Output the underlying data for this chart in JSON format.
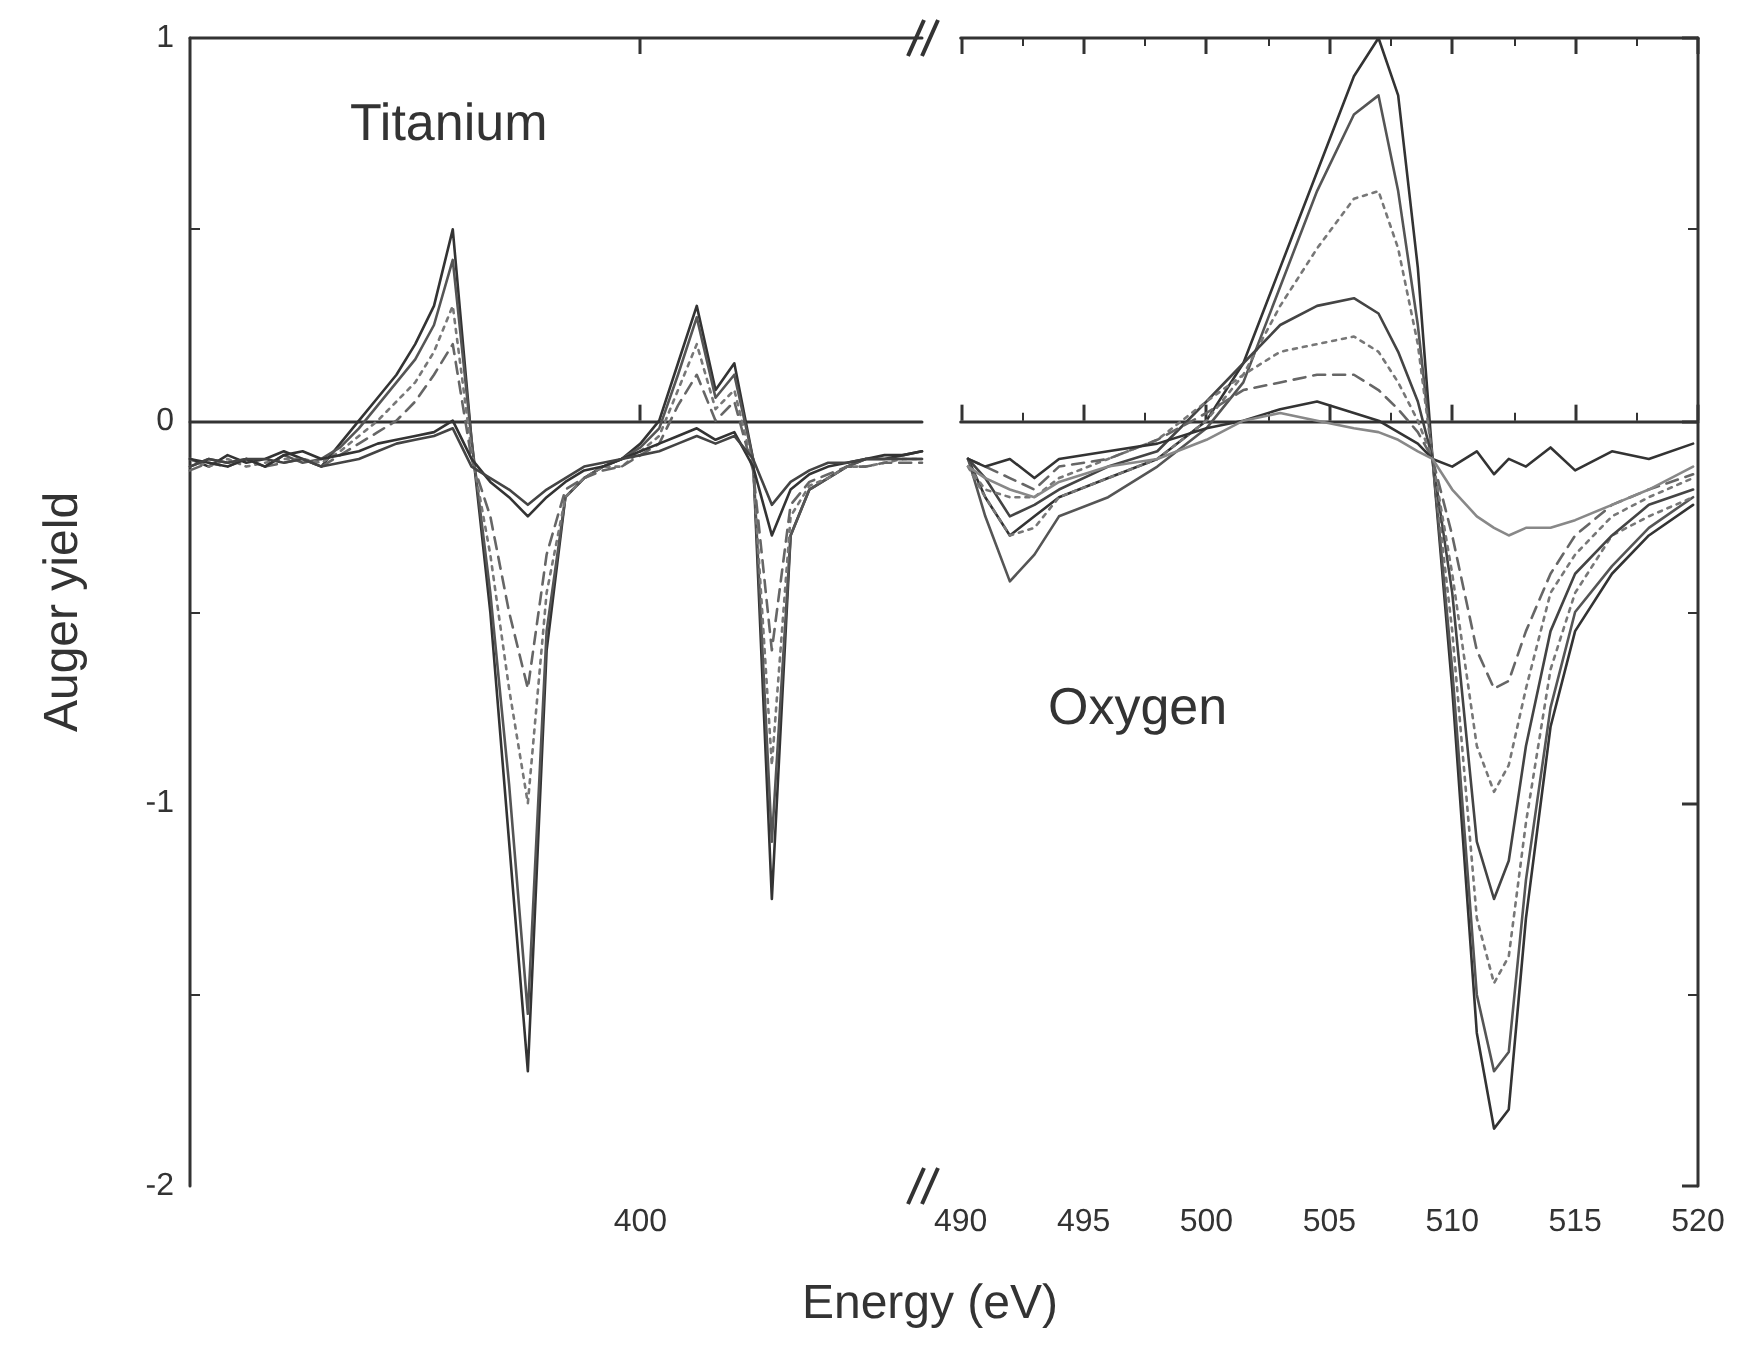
{
  "chart_data": [
    {
      "type": "line",
      "ylabel": "Auger yield",
      "xlabel": "Energy (eV)",
      "annotations": [
        "Titanium"
      ],
      "marker": "none",
      "categories": [
        null,
        null,
        null,
        null,
        null,
        null,
        null,
        null,
        null,
        null,
        null,
        null,
        null,
        null,
        null,
        null,
        null,
        null,
        null,
        null,
        null,
        null,
        null,
        null,
        "400",
        null,
        null,
        null,
        null,
        null,
        null,
        null,
        null,
        null,
        null,
        null,
        null,
        null,
        null,
        null
      ],
      "ylim": [
        -2,
        1
      ],
      "yticks": [
        -2,
        -1,
        0,
        1
      ],
      "series": [
        {
          "color": "#333333",
          "line_style": "solid",
          "values": [
            -0.1,
            -0.12,
            -0.09,
            -0.11,
            -0.1,
            -0.08,
            -0.1,
            -0.12,
            -0.06,
            0.0,
            0.06,
            0.12,
            0.2,
            0.3,
            0.5,
            -0.05,
            -0.5,
            -1.1,
            -1.7,
            -0.6,
            -0.2,
            -0.15,
            -0.12,
            -0.1,
            -0.06,
            0.0,
            0.15,
            0.3,
            0.08,
            0.15,
            -0.1,
            -1.25,
            -0.3,
            -0.18,
            -0.15,
            -0.12,
            -0.1,
            -0.1,
            -0.09,
            -0.08
          ]
        },
        {
          "color": "#555555",
          "line_style": "solid",
          "values": [
            -0.12,
            -0.1,
            -0.11,
            -0.1,
            -0.12,
            -0.09,
            -0.11,
            -0.1,
            -0.07,
            -0.02,
            0.04,
            0.1,
            0.16,
            0.25,
            0.42,
            -0.05,
            -0.45,
            -0.95,
            -1.55,
            -0.55,
            -0.2,
            -0.15,
            -0.12,
            -0.1,
            -0.07,
            -0.02,
            0.12,
            0.27,
            0.06,
            0.12,
            -0.1,
            -1.1,
            -0.3,
            -0.18,
            -0.15,
            -0.12,
            -0.1,
            -0.1,
            -0.1,
            -0.1
          ]
        },
        {
          "color": "#777777",
          "line_style": "dotted",
          "values": [
            -0.1,
            -0.12,
            -0.1,
            -0.12,
            -0.11,
            -0.1,
            -0.1,
            -0.11,
            -0.08,
            -0.04,
            0.0,
            0.05,
            0.1,
            0.18,
            0.3,
            -0.08,
            -0.35,
            -0.7,
            -1.0,
            -0.45,
            -0.2,
            -0.15,
            -0.12,
            -0.12,
            -0.08,
            -0.04,
            0.08,
            0.2,
            0.03,
            0.08,
            -0.12,
            -0.9,
            -0.25,
            -0.17,
            -0.15,
            -0.12,
            -0.12,
            -0.11,
            -0.1,
            -0.1
          ]
        },
        {
          "color": "#666666",
          "line_style": "dashed",
          "values": [
            -0.13,
            -0.11,
            -0.12,
            -0.1,
            -0.12,
            -0.11,
            -0.1,
            -0.12,
            -0.09,
            -0.06,
            -0.03,
            0.0,
            0.05,
            0.12,
            0.2,
            -0.1,
            -0.25,
            -0.5,
            -0.7,
            -0.35,
            -0.18,
            -0.15,
            -0.13,
            -0.12,
            -0.09,
            -0.06,
            0.04,
            0.12,
            0.0,
            0.05,
            -0.13,
            -0.6,
            -0.22,
            -0.16,
            -0.14,
            -0.12,
            -0.12,
            -0.11,
            -0.11,
            -0.11
          ]
        },
        {
          "color": "#333333",
          "line_style": "solid",
          "values": [
            -0.1,
            -0.11,
            -0.12,
            -0.1,
            -0.12,
            -0.09,
            -0.08,
            -0.1,
            -0.09,
            -0.08,
            -0.06,
            -0.05,
            -0.04,
            -0.03,
            0.0,
            -0.1,
            -0.16,
            -0.2,
            -0.25,
            -0.2,
            -0.16,
            -0.13,
            -0.12,
            -0.1,
            -0.08,
            -0.06,
            -0.04,
            -0.02,
            -0.05,
            -0.03,
            -0.12,
            -0.3,
            -0.18,
            -0.14,
            -0.12,
            -0.11,
            -0.1,
            -0.09,
            -0.09,
            -0.08
          ]
        },
        {
          "color": "#444444",
          "line_style": "solid",
          "values": [
            -0.12,
            -0.1,
            -0.11,
            -0.1,
            -0.1,
            -0.11,
            -0.1,
            -0.12,
            -0.11,
            -0.1,
            -0.08,
            -0.06,
            -0.05,
            -0.04,
            -0.02,
            -0.12,
            -0.15,
            -0.18,
            -0.22,
            -0.18,
            -0.15,
            -0.12,
            -0.11,
            -0.1,
            -0.09,
            -0.08,
            -0.06,
            -0.04,
            -0.06,
            -0.04,
            -0.1,
            -0.22,
            -0.16,
            -0.13,
            -0.11,
            -0.11,
            -0.1,
            -0.1,
            -0.1,
            -0.1
          ]
        }
      ]
    },
    {
      "type": "line",
      "annotations": [
        "Oxygen"
      ],
      "marker": "none",
      "tick_labels": "x",
      "xlim": [
        490,
        520
      ],
      "xticks": [
        490,
        495,
        500,
        505,
        510,
        515,
        520
      ],
      "ylim": [
        -2,
        1
      ],
      "yticks": [
        -2,
        -1,
        0,
        1
      ],
      "x": [
        490.3,
        491,
        492,
        493,
        494,
        496,
        498,
        500,
        501.5,
        503,
        504.5,
        506,
        507,
        507.8,
        508.6,
        509.2,
        510,
        511,
        511.7,
        512.3,
        513,
        514,
        515,
        516.5,
        518,
        519.8
      ],
      "series": [
        {
          "color": "#333333",
          "line_style": "solid",
          "values": [
            -0.1,
            -0.2,
            -0.3,
            -0.25,
            -0.2,
            -0.15,
            -0.1,
            0.0,
            0.15,
            0.4,
            0.65,
            0.9,
            1.0,
            0.85,
            0.4,
            -0.1,
            -0.7,
            -1.6,
            -1.85,
            -1.8,
            -1.3,
            -0.8,
            -0.55,
            -0.4,
            -0.3,
            -0.22
          ]
        },
        {
          "color": "#555555",
          "line_style": "solid",
          "values": [
            -0.1,
            -0.25,
            -0.42,
            -0.35,
            -0.25,
            -0.2,
            -0.12,
            -0.02,
            0.1,
            0.35,
            0.6,
            0.8,
            0.85,
            0.6,
            0.25,
            -0.1,
            -0.65,
            -1.5,
            -1.7,
            -1.65,
            -1.2,
            -0.75,
            -0.5,
            -0.38,
            -0.28,
            -0.2
          ]
        },
        {
          "color": "#777777",
          "line_style": "dotted",
          "values": [
            -0.12,
            -0.2,
            -0.3,
            -0.28,
            -0.2,
            -0.15,
            -0.1,
            0.0,
            0.12,
            0.3,
            0.45,
            0.58,
            0.6,
            0.45,
            0.2,
            -0.1,
            -0.55,
            -1.3,
            -1.47,
            -1.4,
            -1.05,
            -0.65,
            -0.45,
            -0.3,
            -0.25,
            -0.2
          ]
        },
        {
          "color": "#444444",
          "line_style": "solid",
          "values": [
            -0.1,
            -0.15,
            -0.25,
            -0.22,
            -0.18,
            -0.12,
            -0.08,
            0.05,
            0.15,
            0.25,
            0.3,
            0.32,
            0.28,
            0.18,
            0.05,
            -0.1,
            -0.45,
            -1.1,
            -1.25,
            -1.15,
            -0.85,
            -0.55,
            -0.4,
            -0.3,
            -0.22,
            -0.18
          ]
        },
        {
          "color": "#777777",
          "line_style": "dotted",
          "values": [
            -0.12,
            -0.18,
            -0.2,
            -0.2,
            -0.15,
            -0.1,
            -0.05,
            0.05,
            0.12,
            0.18,
            0.2,
            0.22,
            0.18,
            0.1,
            0.0,
            -0.1,
            -0.4,
            -0.85,
            -0.97,
            -0.9,
            -0.7,
            -0.45,
            -0.35,
            -0.25,
            -0.2,
            -0.15
          ]
        },
        {
          "color": "#666666",
          "line_style": "dashed",
          "values": [
            -0.1,
            -0.12,
            -0.15,
            -0.18,
            -0.12,
            -0.1,
            -0.05,
            0.02,
            0.08,
            0.1,
            0.12,
            0.12,
            0.08,
            0.03,
            -0.03,
            -0.1,
            -0.3,
            -0.6,
            -0.7,
            -0.68,
            -0.55,
            -0.4,
            -0.3,
            -0.22,
            -0.18,
            -0.14
          ]
        },
        {
          "color": "#333333",
          "line_style": "solid",
          "values": [
            -0.1,
            -0.12,
            -0.1,
            -0.15,
            -0.1,
            -0.08,
            -0.06,
            -0.02,
            0.0,
            0.03,
            0.05,
            0.02,
            0.0,
            -0.03,
            -0.06,
            -0.1,
            -0.12,
            -0.08,
            -0.14,
            -0.1,
            -0.12,
            -0.07,
            -0.13,
            -0.08,
            -0.1,
            -0.06
          ]
        },
        {
          "color": "#888888",
          "line_style": "solid",
          "values": [
            -0.12,
            -0.15,
            -0.18,
            -0.2,
            -0.16,
            -0.12,
            -0.1,
            -0.05,
            0.0,
            0.02,
            0.0,
            -0.02,
            -0.03,
            -0.05,
            -0.08,
            -0.1,
            -0.18,
            -0.25,
            -0.28,
            -0.3,
            -0.28,
            -0.28,
            -0.26,
            -0.22,
            -0.18,
            -0.12
          ]
        }
      ]
    }
  ]
}
